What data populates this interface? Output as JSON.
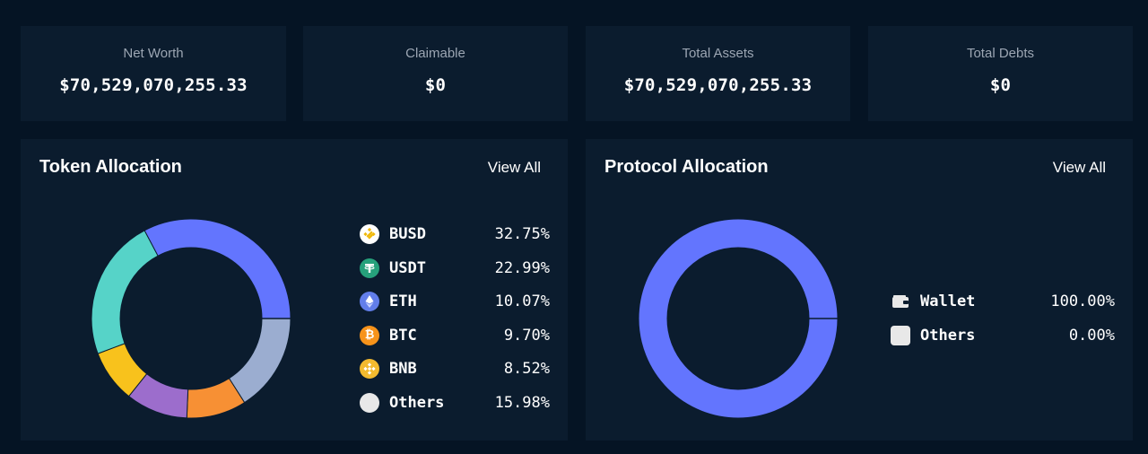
{
  "stats": [
    {
      "label": "Net Worth",
      "value": "$70,529,070,255.33"
    },
    {
      "label": "Claimable",
      "value": "$0"
    },
    {
      "label": "Total Assets",
      "value": "$70,529,070,255.33"
    },
    {
      "label": "Total Debts",
      "value": "$0"
    }
  ],
  "token_allocation": {
    "title": "Token Allocation",
    "view_all": "View All",
    "items": [
      {
        "name": "BUSD",
        "pct": "32.75%",
        "icon": "busd-icon",
        "color": "#f0b90b"
      },
      {
        "name": "USDT",
        "pct": "22.99%",
        "icon": "usdt-icon",
        "color": "#26a17b"
      },
      {
        "name": "ETH",
        "pct": "10.07%",
        "icon": "eth-icon",
        "color": "#627eea"
      },
      {
        "name": "BTC",
        "pct": "9.70%",
        "icon": "btc-icon",
        "color": "#f7931a"
      },
      {
        "name": "BNB",
        "pct": "8.52%",
        "icon": "bnb-icon",
        "color": "#f3ba2f"
      },
      {
        "name": "Others",
        "pct": "15.98%",
        "icon": "others-icon",
        "color": "#e8e8e8"
      }
    ]
  },
  "protocol_allocation": {
    "title": "Protocol Allocation",
    "view_all": "View All",
    "items": [
      {
        "name": "Wallet",
        "pct": "100.00%",
        "icon": "wallet-icon"
      },
      {
        "name": "Others",
        "pct": "0.00%",
        "icon": "others-icon"
      }
    ]
  },
  "chart_data": [
    {
      "type": "pie",
      "categories": [
        "BUSD",
        "USDT",
        "ETH",
        "BTC",
        "BNB",
        "Others"
      ],
      "values": [
        32.75,
        22.99,
        10.07,
        9.7,
        8.52,
        15.98
      ],
      "colors": [
        "#6375fe",
        "#56d3c8",
        "#f8c21c",
        "#9c6dcc",
        "#f79034",
        "#9badd0"
      ],
      "segment_order": [
        "BUSD",
        "Others",
        "BTC",
        "ETH",
        "BNB",
        "USDT"
      ],
      "segment_colors": [
        "#6375fe",
        "#9badd0",
        "#f79034",
        "#9c6dcc",
        "#f8c21c",
        "#56d3c8"
      ],
      "title": "Token Allocation"
    },
    {
      "type": "pie",
      "categories": [
        "Wallet",
        "Others"
      ],
      "values": [
        100.0,
        0.0
      ],
      "colors": [
        "#6375fe",
        "#e8e8e8"
      ],
      "title": "Protocol Allocation"
    }
  ]
}
